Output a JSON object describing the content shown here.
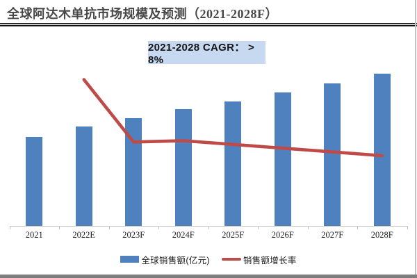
{
  "title": "全球阿达木单抗市场规模及预测（2021-2028F）",
  "annotation_badge": "2021-2028 CAGR：  > 8%",
  "colors": {
    "bar": "#4E81BD",
    "line": "#BE4B48",
    "badge_bg": "#C6D9F1",
    "axis": "#C3C3C3"
  },
  "chart_data": {
    "type": "bar",
    "title": "全球阿达木单抗市场规模及预测（2021-2028F）",
    "annotation": "2021-2028 CAGR：  > 8%",
    "categories": [
      "2021",
      "2022E",
      "2023F",
      "2024F",
      "2025F",
      "2026F",
      "2027F",
      "2028F"
    ],
    "series": [
      {
        "name": "全球销售额(亿元)",
        "type": "bar",
        "color": "#4E81BD",
        "values": [
          100,
          112,
          121,
          131,
          140,
          150,
          160,
          171
        ],
        "values_estimated": true,
        "note_unit": "relative index, no value axis shown"
      },
      {
        "name": "销售额增长率",
        "type": "line",
        "color": "#BE4B48",
        "unit": "%",
        "values": [
          null,
          12.5,
          7.5,
          7.6,
          7.3,
          7.0,
          6.7,
          6.4
        ],
        "values_estimated": true
      }
    ],
    "value_labels_shown": false,
    "y_axis_shown": false,
    "grid": false,
    "legend_position": "bottom"
  }
}
